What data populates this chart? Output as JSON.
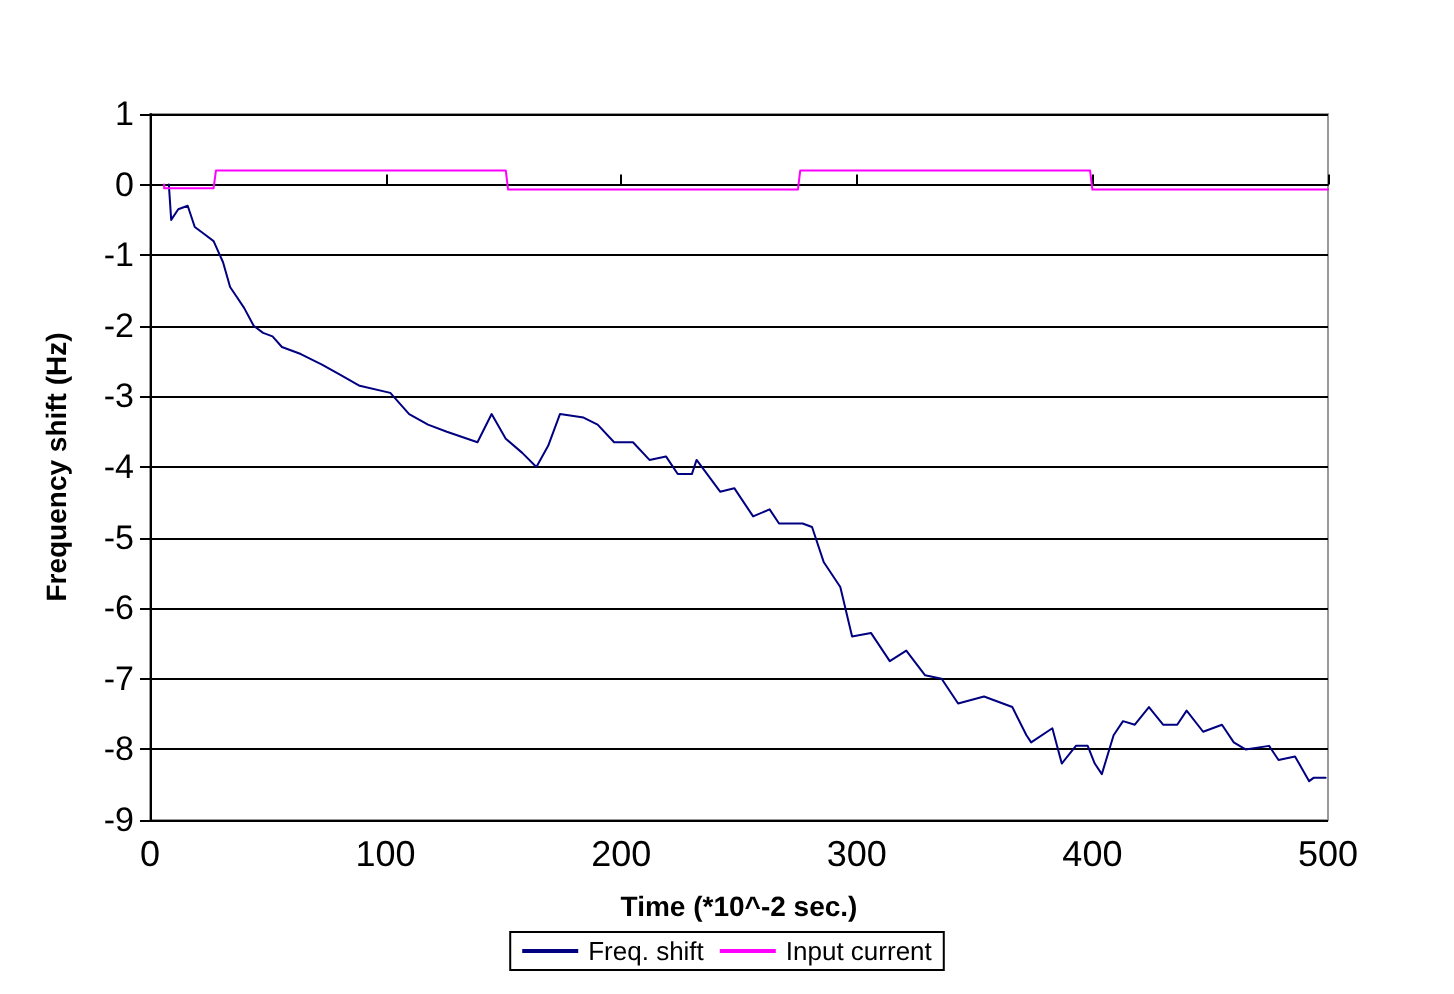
{
  "chart_data": {
    "type": "line",
    "xlabel": "Time (*10^-2 sec.)",
    "ylabel": "Frequency shift (Hz)",
    "xlim": [
      0,
      500
    ],
    "xticks": [
      0,
      100,
      200,
      300,
      400,
      500
    ],
    "ylim": [
      -9,
      1
    ],
    "yticks": [
      -9,
      -8,
      -7,
      -6,
      -5,
      -4,
      -3,
      -2,
      -1,
      0,
      1
    ],
    "grid": "y",
    "legend": "bottom",
    "marker": "none",
    "line_style": "solid",
    "series": [
      {
        "name": "Freq. shift",
        "color": "#000080",
        "x": [
          8,
          9,
          12,
          16,
          19,
          23,
          27,
          31,
          34,
          37,
          40,
          44,
          48,
          52,
          56,
          64,
          73,
          81,
          89,
          102,
          110,
          118,
          126,
          139,
          145,
          151,
          158,
          164,
          169,
          174,
          184,
          190,
          197,
          205,
          212,
          219,
          224,
          230,
          232,
          242,
          248,
          256,
          263,
          267,
          277,
          281,
          286,
          293,
          298,
          306,
          314,
          321,
          329,
          336,
          343,
          354,
          366,
          372,
          374,
          383,
          387,
          393,
          398,
          401,
          404,
          409,
          413,
          418,
          424,
          430,
          436,
          440,
          447,
          455,
          460,
          465,
          475,
          479,
          486,
          492,
          494,
          499
        ],
        "values": [
          0,
          -0.5,
          -0.35,
          -0.3,
          -0.6,
          -0.7,
          -0.8,
          -1.1,
          -1.45,
          -1.6,
          -1.75,
          -2.0,
          -2.1,
          -2.15,
          -2.3,
          -2.4,
          -2.55,
          -2.7,
          -2.85,
          -2.95,
          -3.25,
          -3.4,
          -3.5,
          -3.65,
          -3.25,
          -3.6,
          -3.8,
          -4.0,
          -3.7,
          -3.25,
          -3.3,
          -3.4,
          -3.65,
          -3.65,
          -3.9,
          -3.85,
          -4.1,
          -4.1,
          -3.9,
          -4.35,
          -4.3,
          -4.7,
          -4.6,
          -4.8,
          -4.8,
          -4.85,
          -5.35,
          -5.7,
          -6.4,
          -6.35,
          -6.75,
          -6.6,
          -6.95,
          -7.0,
          -7.35,
          -7.25,
          -7.4,
          -7.8,
          -7.9,
          -7.7,
          -8.2,
          -7.95,
          -7.95,
          -8.2,
          -8.35,
          -7.8,
          -7.6,
          -7.65,
          -7.4,
          -7.65,
          -7.65,
          -7.45,
          -7.75,
          -7.65,
          -7.9,
          -8.0,
          -7.95,
          -8.15,
          -8.1,
          -8.45,
          -8.4,
          -8.4
        ]
      },
      {
        "name": "Input current",
        "color": "#ff00ff",
        "x": [
          6,
          6,
          27,
          28,
          151,
          152,
          275,
          276,
          399,
          400,
          500
        ],
        "values": [
          0,
          -0.05,
          -0.05,
          0.2,
          0.2,
          -0.07,
          -0.07,
          0.2,
          0.2,
          -0.07,
          -0.07
        ]
      }
    ]
  }
}
